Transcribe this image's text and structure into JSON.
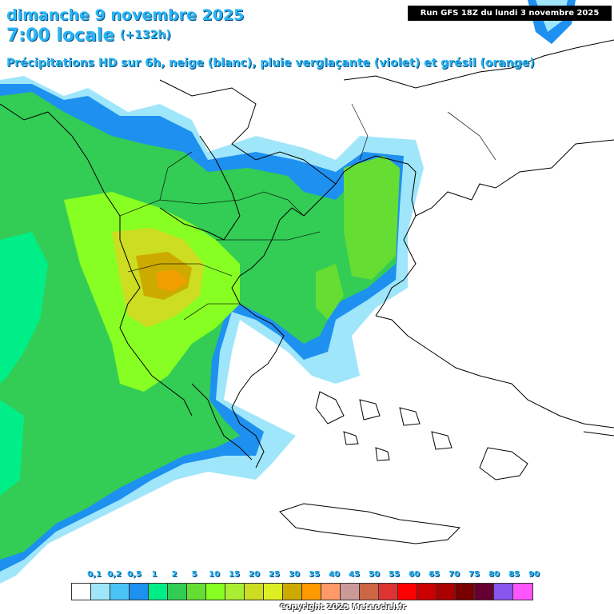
{
  "header": {
    "date_line": "dimanche 9 novembre 2025",
    "time_line": "7:00 locale",
    "lead_time": "(+132h)",
    "subtitle": "Précipitations HD sur 6h, neige (blanc), pluie verglaçante (violet) et grésil (orange)",
    "run_label": "Run GFS 18Z du lundi 3 novembre 2025"
  },
  "legend": {
    "labels": [
      "0,1",
      "0,2",
      "0,5",
      "1",
      "2",
      "5",
      "10",
      "15",
      "20",
      "25",
      "30",
      "35",
      "40",
      "45",
      "50",
      "55",
      "60",
      "65",
      "70",
      "75",
      "80",
      "85",
      "90"
    ],
    "colors": [
      "#ffffff",
      "#9fe6fb",
      "#4cc3f5",
      "#1e90f0",
      "#00ee88",
      "#33cc55",
      "#66dd33",
      "#88ff22",
      "#aaee33",
      "#ccdd22",
      "#ddee22",
      "#ccaa00",
      "#ff9900",
      "#ff9966",
      "#cc9999",
      "#cc6644",
      "#dd3333",
      "#ff0000",
      "#cc0000",
      "#aa0000",
      "#770000",
      "#660033",
      "#8855ee",
      "#ff55ff"
    ]
  },
  "footer": {
    "copyright": "Copyright 2025 Meteociel.fr"
  },
  "map": {
    "background_color": "#ffffff",
    "coastline_color": "#000000"
  }
}
